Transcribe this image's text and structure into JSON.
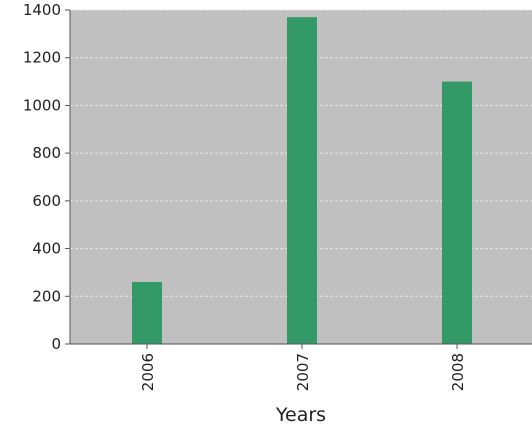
{
  "chart_data": {
    "type": "bar",
    "title": "",
    "xlabel": "Years",
    "ylabel": "",
    "categories": [
      "2006",
      "2007",
      "2008"
    ],
    "series": [
      {
        "values": [
          260,
          1370,
          1100
        ]
      }
    ],
    "ylim": [
      0,
      1400
    ],
    "yticks": [
      "0",
      "200",
      "400",
      "600",
      "800",
      "1000",
      "1200",
      "1400"
    ],
    "grid": true,
    "legend": "none",
    "colors": {
      "bar": "#339966",
      "plot_background": "#c0c0c0",
      "gridline": "#e6e6e6",
      "axis": "#555555"
    }
  }
}
